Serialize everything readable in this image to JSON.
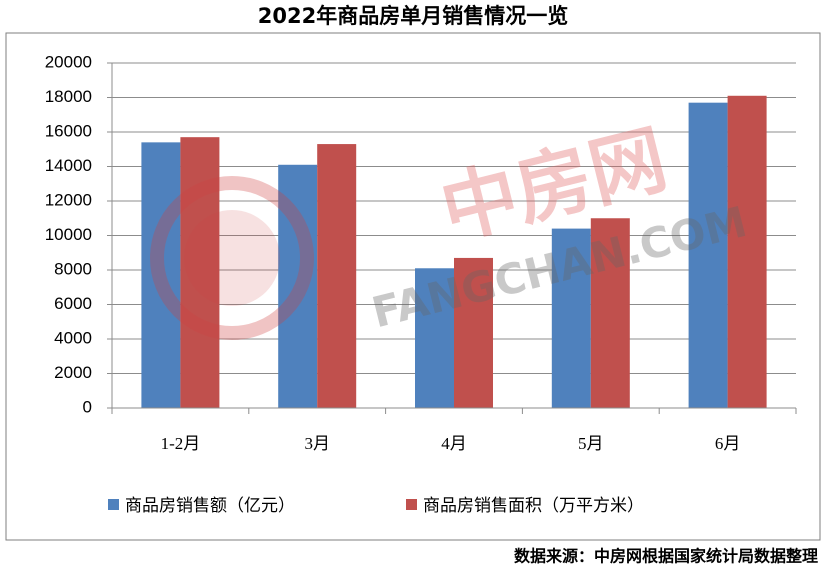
{
  "chart_data": {
    "type": "bar",
    "title": "2022年商品房单月销售情况一览",
    "categories": [
      "1-2月",
      "3月",
      "4月",
      "5月",
      "6月"
    ],
    "series": [
      {
        "name": "商品房销售额（亿元）",
        "color": "#4f81bd",
        "values": [
          15400,
          14100,
          8100,
          10400,
          17700
        ]
      },
      {
        "name": "商品房销售面积（万平方米）",
        "color": "#c0504d",
        "values": [
          15700,
          15300,
          8700,
          11000,
          18100
        ]
      }
    ],
    "ylim": [
      0,
      20000
    ],
    "yticks": [
      0,
      2000,
      4000,
      6000,
      8000,
      10000,
      12000,
      14000,
      16000,
      18000,
      20000
    ],
    "grid": true,
    "legend": "bottom",
    "watermark": [
      "中房网",
      "FANGCHAN.COM"
    ],
    "source": "数据来源：中房网根据国家统计局数据整理"
  }
}
